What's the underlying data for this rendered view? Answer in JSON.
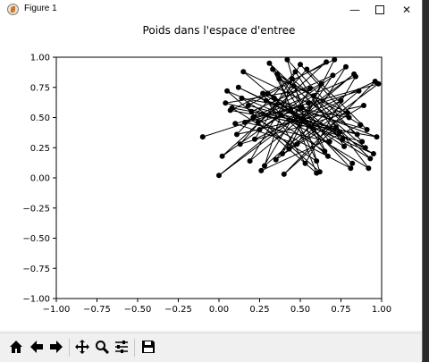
{
  "window": {
    "title": "Figure 1",
    "minimize_glyph": "—",
    "close_glyph": "✕"
  },
  "toolbar": {
    "buttons": [
      {
        "name": "home-icon"
      },
      {
        "name": "back-arrow-icon"
      },
      {
        "name": "forward-arrow-icon"
      },
      {
        "name": "pan-icon"
      },
      {
        "name": "zoom-icon"
      },
      {
        "name": "configure-subplots-icon"
      },
      {
        "name": "save-icon"
      }
    ]
  },
  "chart_data": {
    "type": "line",
    "title": "Poids dans l'espace d'entree",
    "xlabel": "",
    "ylabel": "",
    "xlim": [
      -1.0,
      1.0
    ],
    "ylim": [
      -1.0,
      1.0
    ],
    "xticks": [
      "−1.00",
      "−0.75",
      "−0.50",
      "−0.25",
      "0.00",
      "0.25",
      "0.50",
      "0.75",
      "1.00"
    ],
    "yticks": [
      "−1.00",
      "−0.75",
      "−0.50",
      "−0.25",
      "0.00",
      "0.25",
      "0.50",
      "0.75",
      "1.00"
    ],
    "grid": false,
    "marker": "circle",
    "color": "#000000",
    "series": [
      {
        "x": [
          -0.1,
          0.55,
          0.15,
          0.82,
          0.3,
          0.95,
          0.05,
          0.62,
          0.42,
          0.88,
          0.2,
          0.7,
          0.35,
          0.98,
          0.1,
          0.48,
          0.78,
          0.25,
          0.58,
          0.92,
          0.38,
          0.02,
          0.66,
          0.18,
          0.85,
          0.45,
          0.28,
          0.75,
          0.52,
          0.12,
          0.9,
          0.33,
          0.6,
          0.08,
          0.72,
          0.4,
          0.96,
          0.22,
          0.5,
          0.8,
          0.14,
          0.65,
          0.36,
          0.87,
          0.26,
          0.56,
          0.04,
          0.74,
          0.44,
          0.93,
          0.31,
          0.68,
          0.16,
          0.84,
          0.53,
          0.27,
          0.77,
          0.47,
          0.11,
          0.89,
          0.39,
          0.63,
          0.21,
          0.81,
          0.57,
          0.34,
          0.97,
          0.07,
          0.71,
          0.43,
          0.86,
          0.24,
          0.6,
          0.37,
          0.79,
          0.13,
          0.54,
          0.91,
          0.29,
          0.67,
          0.46,
          0.19,
          0.83,
          0.0,
          0.51,
          0.76
        ],
        "y": [
          0.34,
          0.62,
          0.88,
          0.12,
          0.7,
          0.2,
          0.72,
          0.05,
          0.98,
          0.3,
          0.55,
          0.85,
          0.15,
          0.78,
          0.45,
          0.28,
          0.92,
          0.4,
          0.68,
          0.08,
          0.52,
          0.18,
          0.96,
          0.6,
          0.36,
          0.82,
          0.1,
          0.64,
          0.48,
          0.75,
          0.25,
          0.9,
          0.14,
          0.58,
          0.42,
          0.03,
          0.8,
          0.32,
          0.94,
          0.5,
          0.66,
          0.22,
          0.86,
          0.44,
          0.06,
          0.74,
          0.62,
          0.38,
          0.56,
          0.16,
          0.95,
          0.3,
          0.46,
          0.84,
          0.12,
          0.7,
          0.26,
          0.88,
          0.36,
          0.6,
          0.2,
          0.78,
          0.5,
          0.08,
          0.42,
          0.66,
          0.34,
          0.56,
          0.98,
          0.24,
          0.72,
          0.46,
          0.04,
          0.82,
          0.54,
          0.28,
          0.9,
          0.4,
          0.64,
          0.18,
          0.76,
          0.14,
          0.86,
          0.02,
          0.58,
          0.32
        ]
      }
    ]
  }
}
